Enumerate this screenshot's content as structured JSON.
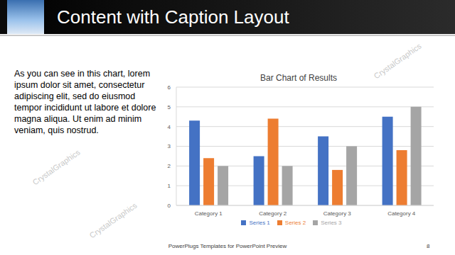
{
  "slide": {
    "title": "Content with Caption Layout",
    "caption": "As you can see in this chart, lorem ipsum dolor sit amet, consectetur adipiscing elit, sed do eiusmod tempor incididunt ut labore et dolore magna aliqua. Ut enim ad minim veniam, quis nostrud.",
    "footer": "PowerPlugs Templates for PowerPoint Preview",
    "page_number": "8",
    "watermark": "CrystalGraphics"
  },
  "chart_data": {
    "type": "bar",
    "title": "Bar Chart of Results",
    "categories": [
      "Category 1",
      "Category 2",
      "Category 3",
      "Category 4"
    ],
    "series": [
      {
        "name": "Series 1",
        "color": "#4472c4",
        "values": [
          4.3,
          2.5,
          3.5,
          4.5
        ]
      },
      {
        "name": "Series 2",
        "color": "#ed7d31",
        "values": [
          2.4,
          4.4,
          1.8,
          2.8
        ]
      },
      {
        "name": "Series 3",
        "color": "#a5a5a5",
        "values": [
          2,
          2,
          3,
          5
        ]
      }
    ],
    "ylim": [
      0,
      6
    ],
    "yticks": [
      0,
      1,
      2,
      3,
      4,
      5,
      6
    ],
    "grid": true,
    "legend": "bottom"
  }
}
